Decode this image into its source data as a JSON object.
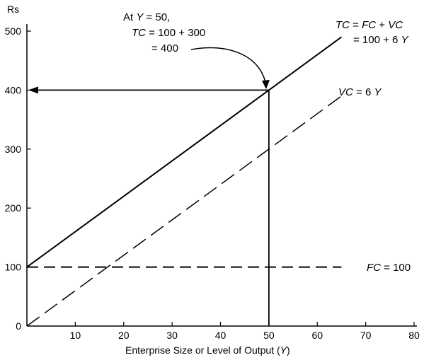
{
  "chart_data": {
    "type": "line",
    "ylabel": "Rs",
    "xlabel_text": "Enterprise Size or Level of Output (",
    "xlabel_var": "Y",
    "xlabel_close": ")",
    "xlim": [
      0,
      80
    ],
    "ylim": [
      0,
      500
    ],
    "x_ticks": [
      10,
      20,
      30,
      40,
      50,
      60,
      70,
      80
    ],
    "y_ticks": [
      100,
      200,
      300,
      400,
      500
    ],
    "origin_label": "0",
    "series": [
      {
        "key": "tc",
        "style": "solid",
        "points": [
          [
            0,
            100
          ],
          [
            65,
            490
          ]
        ]
      },
      {
        "key": "vc",
        "style": "dashed",
        "points": [
          [
            0,
            0
          ],
          [
            65,
            390
          ]
        ]
      },
      {
        "key": "fc",
        "style": "dashed",
        "points": [
          [
            0,
            100
          ],
          [
            65,
            100
          ]
        ]
      }
    ],
    "guides": {
      "x": 50,
      "y": 400
    },
    "labels": {
      "tc_line1": [
        "TC",
        " = ",
        "FC",
        " + ",
        "VC"
      ],
      "tc_line2": "= 100 + 6 ",
      "tc_line2_var": "Y",
      "vc": [
        "VC",
        " = 6 ",
        "Y"
      ],
      "fc": [
        "FC",
        " = 100"
      ]
    },
    "annotation": {
      "line1_a": "At ",
      "line1_var": "Y",
      "line1_b": " = 50,",
      "line2_var": "TC",
      "line2_b": " = 100 + 300",
      "line3": "= 400"
    }
  }
}
